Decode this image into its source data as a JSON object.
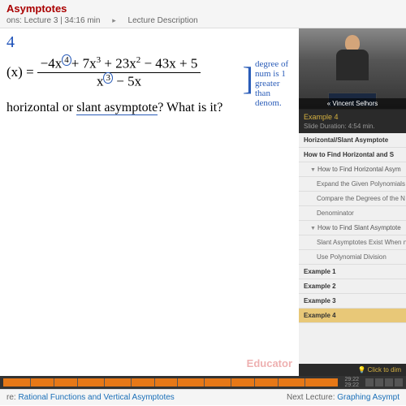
{
  "header": {
    "title": "Asymptotes",
    "lecture_info": "ons: Lecture 3 | 34:16 min",
    "desc_link": "Lecture Description"
  },
  "content": {
    "example_num": "4",
    "fx_label": "(x) =",
    "numerator_parts": [
      "−4x",
      "4",
      "+ 7x",
      "3",
      " + 23x",
      "2",
      " − 43x + 5"
    ],
    "denominator_parts": [
      "x",
      "3",
      " − 5x"
    ],
    "annotation": "degree of num is 1 greater than denom.",
    "question_pre": "horizontal or ",
    "question_slant": "slant asymptote",
    "question_post": "? What is it?",
    "watermark": "Educator"
  },
  "sidebar": {
    "presenter_name": "« Vincent Selhors",
    "slide_title": "Example 4",
    "slide_duration": "Slide Duration: 4:54 min.",
    "outline": [
      {
        "label": "Horizontal/Slant Asymptote",
        "type": "bold"
      },
      {
        "label": "How to Find Horizontal and S",
        "type": "bold"
      },
      {
        "label": "How to Find Horizontal Asym",
        "type": "sub",
        "expand": true
      },
      {
        "label": "Expand the Given Polynomials",
        "type": "subsub"
      },
      {
        "label": "Compare the Degrees of the N",
        "type": "subsub"
      },
      {
        "label": "Denominator",
        "type": "subsub"
      },
      {
        "label": "How to Find Slant Asymptote",
        "type": "sub",
        "expand": true
      },
      {
        "label": "Slant Asymptotes Exist When n",
        "type": "subsub"
      },
      {
        "label": "Use Polynomial Division",
        "type": "subsub"
      },
      {
        "label": "Example 1",
        "type": "bold"
      },
      {
        "label": "Example 2",
        "type": "bold"
      },
      {
        "label": "Example 3",
        "type": "bold"
      },
      {
        "label": "Example 4",
        "type": "selected"
      }
    ],
    "click_dim": "💡 Click to dim"
  },
  "player": {
    "time1": "29:22",
    "time2": "29:22",
    "progress_pct": 86,
    "marks": [
      8,
      15,
      22,
      30,
      38,
      45,
      52,
      60,
      68,
      75,
      82,
      90
    ]
  },
  "footer": {
    "prev_label": "re:",
    "prev_title": "Rational Functions and Vertical Asymptotes",
    "next_label": "Next Lecture:",
    "next_title": "Graphing Asympt"
  },
  "colors": {
    "accent_red": "#a00000",
    "link_blue": "#1a6fb8",
    "math_blue": "#2a5cb8",
    "progress_orange": "#e67817",
    "gold": "#d4b040",
    "selected_bg": "#e8c878"
  }
}
